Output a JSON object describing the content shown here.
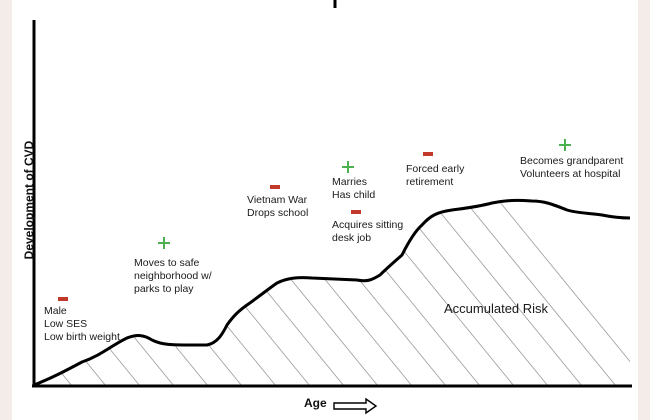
{
  "axes": {
    "y_label": "Development of CVD",
    "x_label": "Age"
  },
  "region_label": "Accumulated Risk",
  "events": [
    {
      "id": "male",
      "sign": "negative",
      "lines": [
        "Male",
        "Low SES",
        "Low birth weight"
      ]
    },
    {
      "id": "moves",
      "sign": "positive",
      "lines": [
        "Moves to safe",
        "neighborhood w/",
        "parks to play"
      ]
    },
    {
      "id": "vietnam",
      "sign": "negative",
      "lines": [
        "Vietnam War",
        "Drops school"
      ]
    },
    {
      "id": "marries",
      "sign": "positive",
      "lines": [
        "Marries",
        "Has child"
      ]
    },
    {
      "id": "desk",
      "sign": "negative",
      "lines": [
        "Acquires sitting",
        "desk job"
      ]
    },
    {
      "id": "retire",
      "sign": "negative",
      "lines": [
        "Forced early",
        "retirement"
      ]
    },
    {
      "id": "grand",
      "sign": "positive",
      "lines": [
        "Becomes grandparent",
        "Volunteers at hospital"
      ]
    }
  ],
  "colors": {
    "negative": "#c0392b",
    "positive": "#4caf50"
  }
}
